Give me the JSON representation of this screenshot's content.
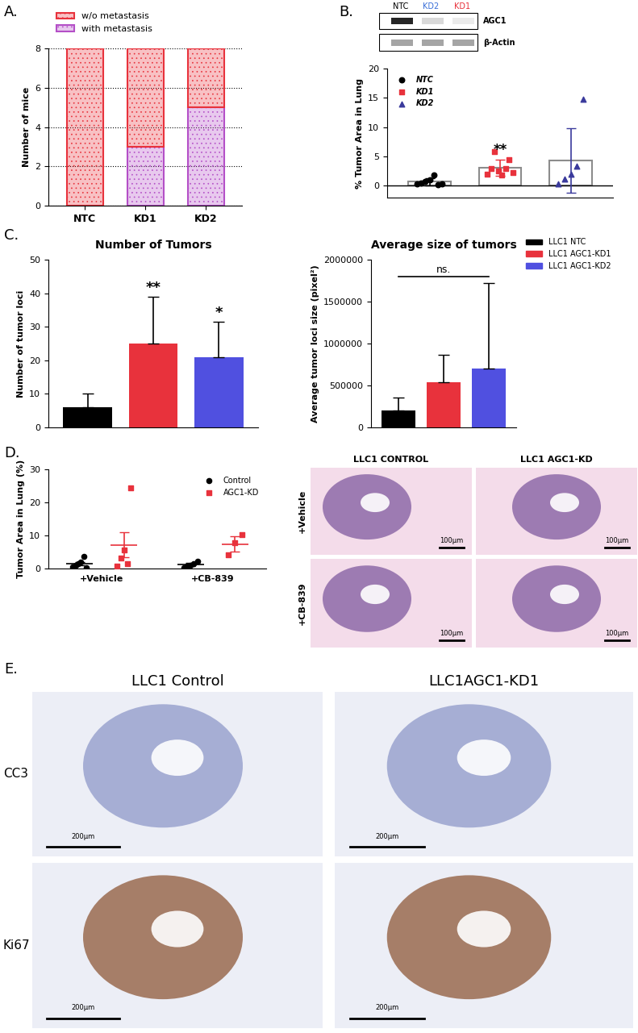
{
  "panel_labels": [
    "A.",
    "B.",
    "C.",
    "D.",
    "E."
  ],
  "chart_data": [
    {
      "type": "bar",
      "stacked": true,
      "categories": [
        "NTC",
        "KD1",
        "KD2"
      ],
      "y_label": "Number of mice",
      "ylim": [
        0,
        8
      ],
      "yticks": [
        0,
        2,
        4,
        6,
        8
      ],
      "grid": true,
      "legend": "upper left",
      "series": [
        {
          "name": "w/o metastasis",
          "color": "#e8323c",
          "values": [
            8,
            5,
            3
          ]
        },
        {
          "name": "with metastasis",
          "color": "#b44fc7",
          "values": [
            0,
            3,
            5
          ]
        }
      ]
    },
    {
      "type": "bar",
      "categories": [
        "NTC",
        "KD1",
        "KD2"
      ],
      "tick_labels": "y",
      "values": [
        0.7,
        3.1,
        4.3
      ],
      "errors": [
        0.6,
        1.4,
        5.5
      ],
      "color": "#8c8c8c",
      "y_label": "% Tumor Area in Lung",
      "ylim": [
        -2,
        20
      ],
      "yticks": [
        0,
        5,
        10,
        15,
        20
      ],
      "legend": "upper left",
      "annotations": [
        {
          "text": "**",
          "category": "KD1"
        }
      ],
      "series": [
        {
          "name": "NTC",
          "type": "scatter",
          "marker": "circle",
          "color": "#000000",
          "points": [
            0.3,
            0.5,
            0.8,
            1.0,
            1.9,
            0.2,
            0.4
          ]
        },
        {
          "name": "KD1",
          "type": "scatter",
          "marker": "square",
          "color": "#e8323c",
          "points": [
            2.0,
            3.0,
            5.8,
            2.5,
            1.8,
            3.0,
            4.5,
            2.2
          ]
        },
        {
          "name": "KD2",
          "type": "scatter",
          "marker": "triangle",
          "color": "#3a3a9c",
          "points": [
            0.3,
            1.2,
            2.0,
            3.3,
            14.8
          ]
        }
      ]
    },
    {
      "type": "bar",
      "title": "Number of Tumors",
      "categories": [
        "LLC1 NTC",
        "LLC1 AGC1-KD1",
        "LLC1 AGC1-KD2"
      ],
      "tick_labels": "y",
      "values": [
        6,
        25,
        21
      ],
      "errors": [
        4,
        14,
        10.5
      ],
      "colors": [
        "#000000",
        "#e8323c",
        "#5050e0"
      ],
      "y_label": "Number of tumor loci",
      "ylim": [
        0,
        50
      ],
      "yticks": [
        0,
        10,
        20,
        30,
        40,
        50
      ],
      "annotations": [
        {
          "text": "**",
          "category": "LLC1 AGC1-KD1"
        },
        {
          "text": "*",
          "category": "LLC1 AGC1-KD2"
        }
      ]
    },
    {
      "type": "bar",
      "title": "Average size of tumors",
      "categories": [
        "LLC1 NTC",
        "LLC1 AGC1-KD1",
        "LLC1 AGC1-KD2"
      ],
      "tick_labels": "y",
      "values": [
        200000,
        540000,
        700000
      ],
      "errors": [
        160000,
        330000,
        1020000
      ],
      "colors": [
        "#000000",
        "#e8323c",
        "#5050e0"
      ],
      "legend": "upper left",
      "y_label": "Average tumor loci size (pixel²)",
      "ylim": [
        0,
        2000000
      ],
      "yticks": [
        0,
        500000,
        1000000,
        1500000,
        2000000
      ],
      "annotations": [
        {
          "text": "ns.",
          "from": "LLC1 NTC",
          "to": "LLC1 AGC1-KD2"
        }
      ]
    },
    {
      "type": "scatter",
      "categories": [
        "+Vehicle",
        "+CB-839"
      ],
      "y_label": "Tumor Area in Lung (%)",
      "ylim": [
        0,
        30
      ],
      "yticks": [
        0,
        10,
        20,
        30
      ],
      "legend": "upper right",
      "series": [
        {
          "name": "Control",
          "color": "#000000",
          "marker": "circle",
          "points": [
            [
              0.5,
              1.0,
              1.5,
              2.0,
              3.6,
              0.3
            ],
            [
              0.3,
              0.8,
              1.0,
              1.5,
              2.2
            ]
          ],
          "values": [
            1.5,
            1.2
          ],
          "errors": [
            0.5,
            0.4
          ]
        },
        {
          "name": "AGC1-KD",
          "color": "#e8323c",
          "marker": "square",
          "points": [
            [
              0.8,
              3.2,
              5.5,
              1.5,
              24.5
            ],
            [
              4.2,
              7.8,
              10.2
            ]
          ],
          "values": [
            7.1,
            7.4
          ],
          "errors": [
            3.8,
            2.3
          ]
        }
      ]
    }
  ],
  "western_blot": {
    "lanes": [
      {
        "name": "NTC",
        "color": "#000000"
      },
      {
        "name": "KD2",
        "color": "#3a6fd8"
      },
      {
        "name": "KD1",
        "color": "#e8323c"
      }
    ],
    "bands": [
      "AGC1",
      "β-Actin"
    ]
  },
  "histology_d": {
    "columns": [
      "LLC1 CONTROL",
      "LLC1 AGC1-KD"
    ],
    "rows": [
      "+Vehicle",
      "+CB-839"
    ],
    "scale_bar": "100µm"
  },
  "histology_e": {
    "columns": [
      "LLC1 Control",
      "LLC1AGC1-KD1"
    ],
    "rows": [
      "CC3",
      "Ki67"
    ],
    "scale_bar": "200µm"
  }
}
